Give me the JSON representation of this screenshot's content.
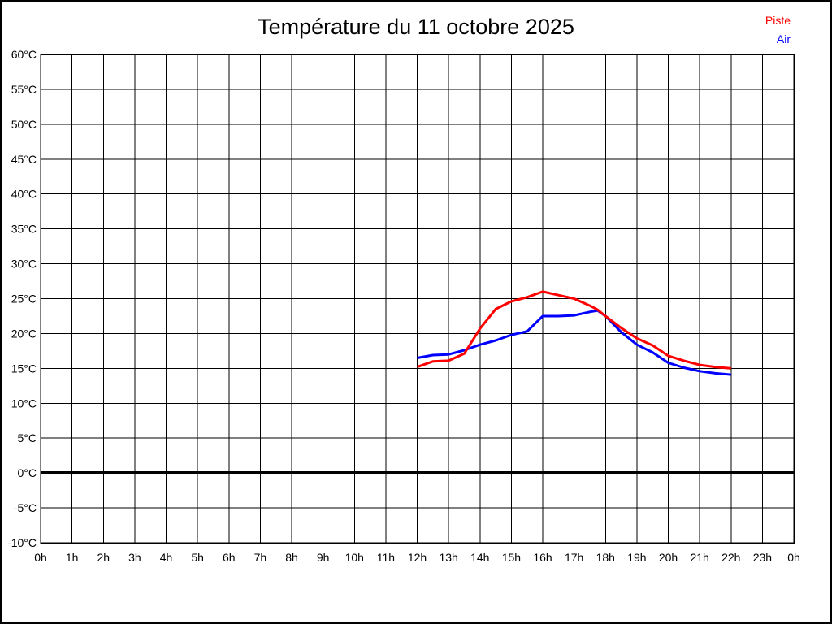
{
  "title": "Température du 11 octobre 2025",
  "legend": {
    "items": [
      {
        "label": "Piste",
        "color": "#ff0000"
      },
      {
        "label": "Air",
        "color": "#0000ff"
      }
    ]
  },
  "colors": {
    "background": "#ffffff",
    "grid": "#000000",
    "frame": "#000000",
    "zero_line": "#000000",
    "piste": "#ff0000",
    "air": "#0000ff"
  },
  "chart_data": {
    "type": "line",
    "title": "Température du 11 octobre 2025",
    "xlabel": "",
    "ylabel": "",
    "xlim": [
      0,
      24
    ],
    "ylim": [
      -10,
      60
    ],
    "grid": true,
    "grid_step_x_hours": 1,
    "grid_step_y_deg": 5,
    "zero_line_bold": true,
    "legend_position": "top-right",
    "x_ticks": [
      "0h",
      "1h",
      "2h",
      "3h",
      "4h",
      "5h",
      "6h",
      "7h",
      "8h",
      "9h",
      "10h",
      "11h",
      "12h",
      "13h",
      "14h",
      "15h",
      "16h",
      "17h",
      "18h",
      "19h",
      "20h",
      "21h",
      "22h",
      "23h",
      "0h"
    ],
    "y_ticks": [
      "60°C",
      "55°C",
      "50°C",
      "45°C",
      "40°C",
      "35°C",
      "30°C",
      "25°C",
      "20°C",
      "15°C",
      "10°C",
      "5°C",
      "0°C",
      "-5°C",
      "-10°C"
    ],
    "y_tick_values": [
      60,
      55,
      50,
      45,
      40,
      35,
      30,
      25,
      20,
      15,
      10,
      5,
      0,
      -5,
      -10
    ],
    "series": [
      {
        "name": "Air",
        "color": "#0000ff",
        "x": [
          12,
          12.5,
          13,
          13.5,
          14,
          14.5,
          15,
          15.5,
          16,
          16.5,
          17,
          17.5,
          17.75,
          18,
          18.5,
          19,
          19.5,
          20,
          20.5,
          21,
          21.5,
          22
        ],
        "values": [
          16.5,
          16.9,
          17.0,
          17.6,
          18.4,
          19.0,
          19.8,
          20.3,
          22.5,
          22.5,
          22.6,
          23.1,
          23.3,
          22.5,
          20.2,
          18.4,
          17.3,
          15.8,
          15.1,
          14.6,
          14.3,
          14.1
        ]
      },
      {
        "name": "Piste",
        "color": "#ff0000",
        "x": [
          12,
          12.5,
          13,
          13.5,
          14,
          14.5,
          15,
          15.5,
          16,
          16.5,
          17,
          17.5,
          17.75,
          18,
          18.5,
          19,
          19.5,
          20,
          20.5,
          21,
          21.5,
          22
        ],
        "values": [
          15.2,
          16.0,
          16.1,
          17.1,
          20.7,
          23.5,
          24.6,
          25.2,
          26.0,
          25.5,
          25.0,
          24.0,
          23.4,
          22.5,
          20.8,
          19.3,
          18.3,
          16.8,
          16.1,
          15.5,
          15.2,
          15.0
        ]
      }
    ]
  }
}
